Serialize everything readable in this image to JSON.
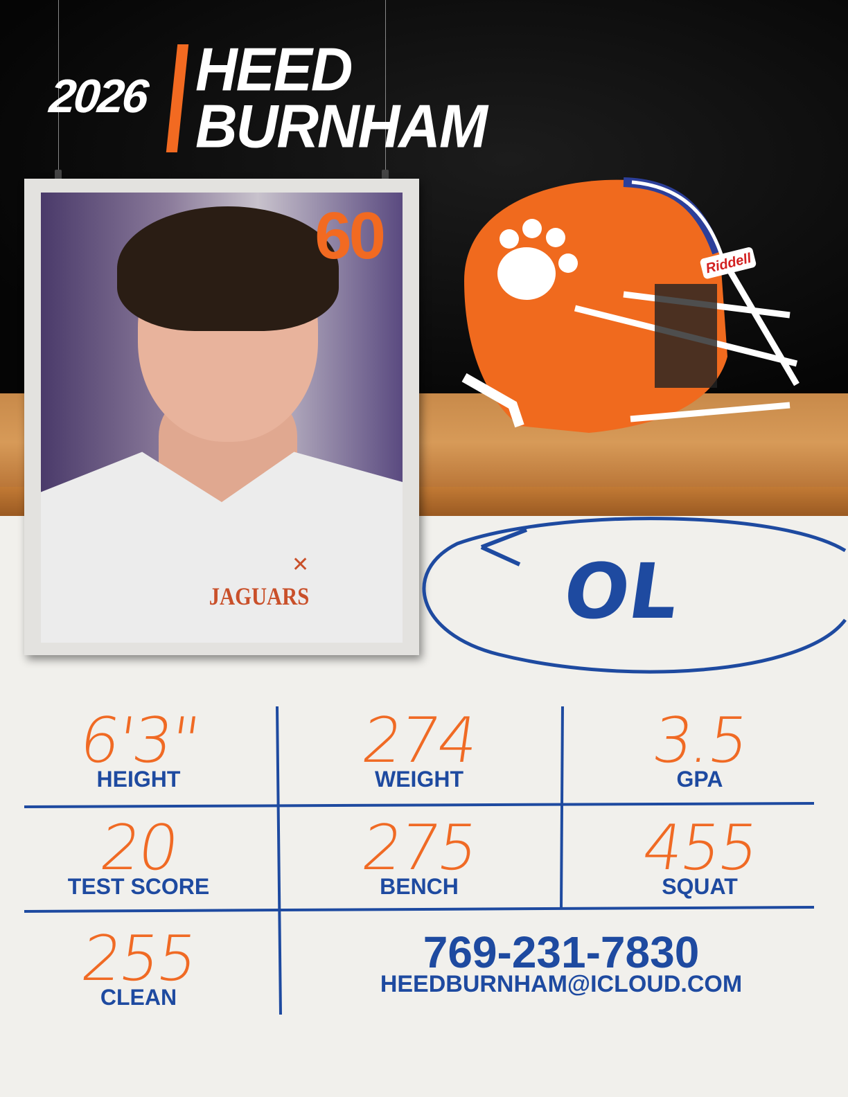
{
  "header": {
    "year": "2026",
    "first_name": "HEED",
    "last_name": "BURNHAM"
  },
  "photo": {
    "jersey_number": "60",
    "jersey_text": "JAGUARS"
  },
  "helmet": {
    "brand": "Riddell"
  },
  "position": "OL",
  "stats": [
    {
      "value": "6'3\"",
      "label": "HEIGHT"
    },
    {
      "value": "274",
      "label": "WEIGHT"
    },
    {
      "value": "3.5",
      "label": "GPA"
    },
    {
      "value": "20",
      "label": "TEST SCORE"
    },
    {
      "value": "275",
      "label": "BENCH"
    },
    {
      "value": "455",
      "label": "SQUAT"
    },
    {
      "value": "255",
      "label": "CLEAN"
    }
  ],
  "contact": {
    "phone": "769-231-7830",
    "email": "HEEDBURNHAM@ICLOUD.COM"
  },
  "colors": {
    "orange": "#f26a21",
    "blue": "#1e4aa0",
    "board": "#0a0a0a"
  }
}
